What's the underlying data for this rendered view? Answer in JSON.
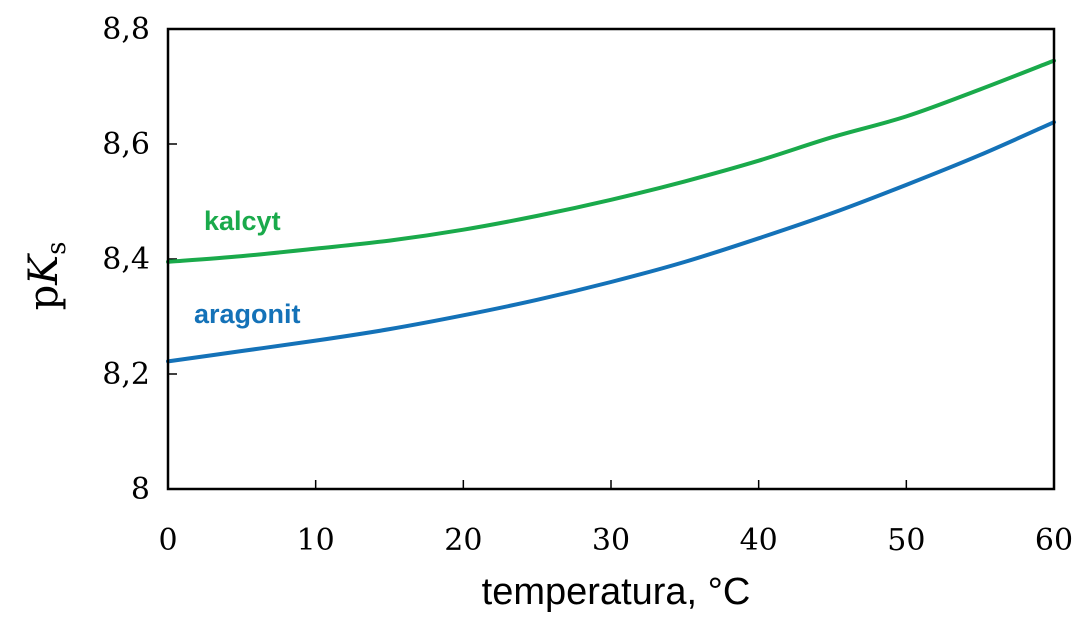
{
  "chart_data": {
    "type": "line",
    "xlabel": "temperatura, °C",
    "ylabel": {
      "base": "p",
      "var": "K",
      "sub": "s"
    },
    "xlim": [
      0,
      60
    ],
    "ylim": [
      8.0,
      8.8
    ],
    "x_ticks": [
      0,
      10,
      20,
      30,
      40,
      50,
      60
    ],
    "x_tick_labels": [
      "0",
      "10",
      "20",
      "30",
      "40",
      "50",
      "60"
    ],
    "y_ticks": [
      8.0,
      8.2,
      8.4,
      8.6,
      8.8
    ],
    "y_tick_labels": [
      "8",
      "8,2",
      "8,4",
      "8,6",
      "8,8"
    ],
    "grid": false,
    "legend": "none",
    "series": [
      {
        "name": "kalcyt",
        "color": "#1aaa4b",
        "x": [
          0,
          5,
          10,
          15,
          20,
          25,
          30,
          35,
          40,
          45,
          50,
          55,
          60
        ],
        "y": [
          8.395,
          8.405,
          8.418,
          8.432,
          8.451,
          8.475,
          8.503,
          8.535,
          8.571,
          8.612,
          8.648,
          8.695,
          8.745
        ]
      },
      {
        "name": "aragonit",
        "color": "#1472b8",
        "x": [
          0,
          5,
          10,
          15,
          20,
          25,
          30,
          35,
          40,
          45,
          50,
          55,
          60
        ],
        "y": [
          8.222,
          8.24,
          8.258,
          8.278,
          8.302,
          8.329,
          8.36,
          8.395,
          8.436,
          8.48,
          8.529,
          8.581,
          8.638
        ]
      }
    ]
  }
}
